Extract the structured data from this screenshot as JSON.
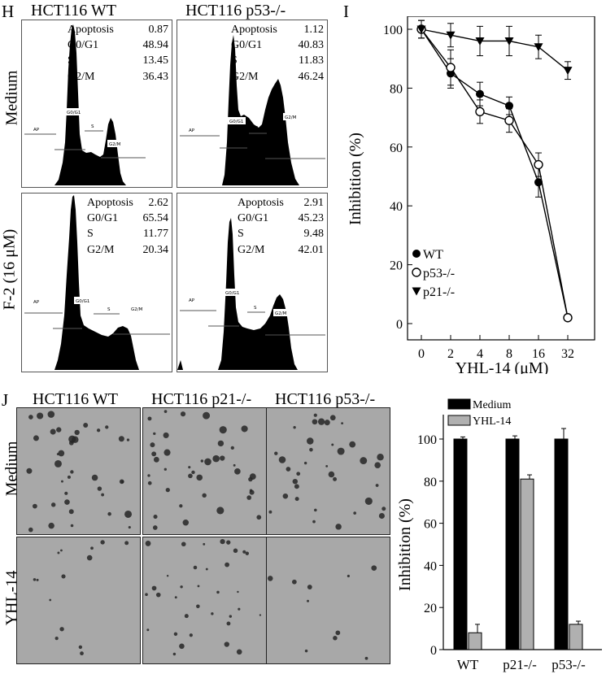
{
  "panel_letters": {
    "h": "H",
    "i": "I",
    "j": "J"
  },
  "flow": {
    "column_titles": [
      "HCT116  WT",
      "HCT116  p53-/-"
    ],
    "row_labels": [
      "Medium",
      "F-2 (16 μM)"
    ],
    "stat_labels": [
      "Apoptosis",
      "G0/G1",
      "S",
      "G2/M"
    ],
    "gate_labels": {
      "ap": "AP",
      "g0g1": "G0/G1",
      "s": "S",
      "g2m": "G2/M"
    },
    "panels": [
      {
        "values": [
          "0.87",
          "48.94",
          "13.45",
          "36.43"
        ]
      },
      {
        "values": [
          "1.12",
          "40.83",
          "11.83",
          "46.24"
        ]
      },
      {
        "values": [
          "2.62",
          "65.54",
          "11.77",
          "20.34"
        ]
      },
      {
        "values": [
          "2.91",
          "45.23",
          "9.48",
          "42.01"
        ]
      }
    ]
  },
  "colony": {
    "column_titles": [
      "HCT116  WT",
      "HCT116 p21-/-",
      "HCT116 p53-/-"
    ],
    "row_labels": [
      "Medium",
      "YHL-14"
    ]
  },
  "chart_data": [
    {
      "type": "line",
      "panel": "I",
      "xlabel": "YHL-14 (μM)",
      "ylabel": "Inhibition (%)",
      "x": [
        "0",
        "2",
        "4",
        "8",
        "16",
        "32"
      ],
      "ylim": [
        0,
        100
      ],
      "yticks": [
        0,
        20,
        40,
        60,
        80,
        100
      ],
      "grid": false,
      "legend_position": "bottom-left",
      "series": [
        {
          "name": "WT",
          "marker": "filled-circle",
          "values": [
            100,
            85,
            78,
            74,
            48,
            2
          ],
          "errors": [
            3,
            5,
            4,
            3,
            5,
            1
          ]
        },
        {
          "name": "p53-/-",
          "marker": "open-circle",
          "values": [
            100,
            87,
            72,
            69,
            54,
            2
          ],
          "errors": [
            3,
            6,
            4,
            4,
            4,
            1
          ]
        },
        {
          "name": "p21-/-",
          "marker": "filled-triangle-down",
          "values": [
            100,
            98,
            96,
            96,
            94,
            86
          ],
          "errors": [
            3,
            4,
            5,
            5,
            4,
            3
          ]
        }
      ]
    },
    {
      "type": "bar",
      "panel": "J",
      "categories": [
        "WT",
        "p21-/-",
        "p53-/-"
      ],
      "ylabel": "Inhibition (%)",
      "ylim": [
        0,
        100
      ],
      "yticks": [
        0,
        20,
        40,
        60,
        80,
        100
      ],
      "grid": false,
      "legend_position": "top",
      "series": [
        {
          "name": "Medium",
          "color": "#000000",
          "values": [
            100,
            100,
            100
          ],
          "errors": [
            1,
            1.5,
            5
          ]
        },
        {
          "name": "YHL-14",
          "color": "#b0b0b0",
          "values": [
            8,
            81,
            12
          ],
          "errors": [
            4,
            2,
            1.5
          ]
        }
      ]
    }
  ]
}
